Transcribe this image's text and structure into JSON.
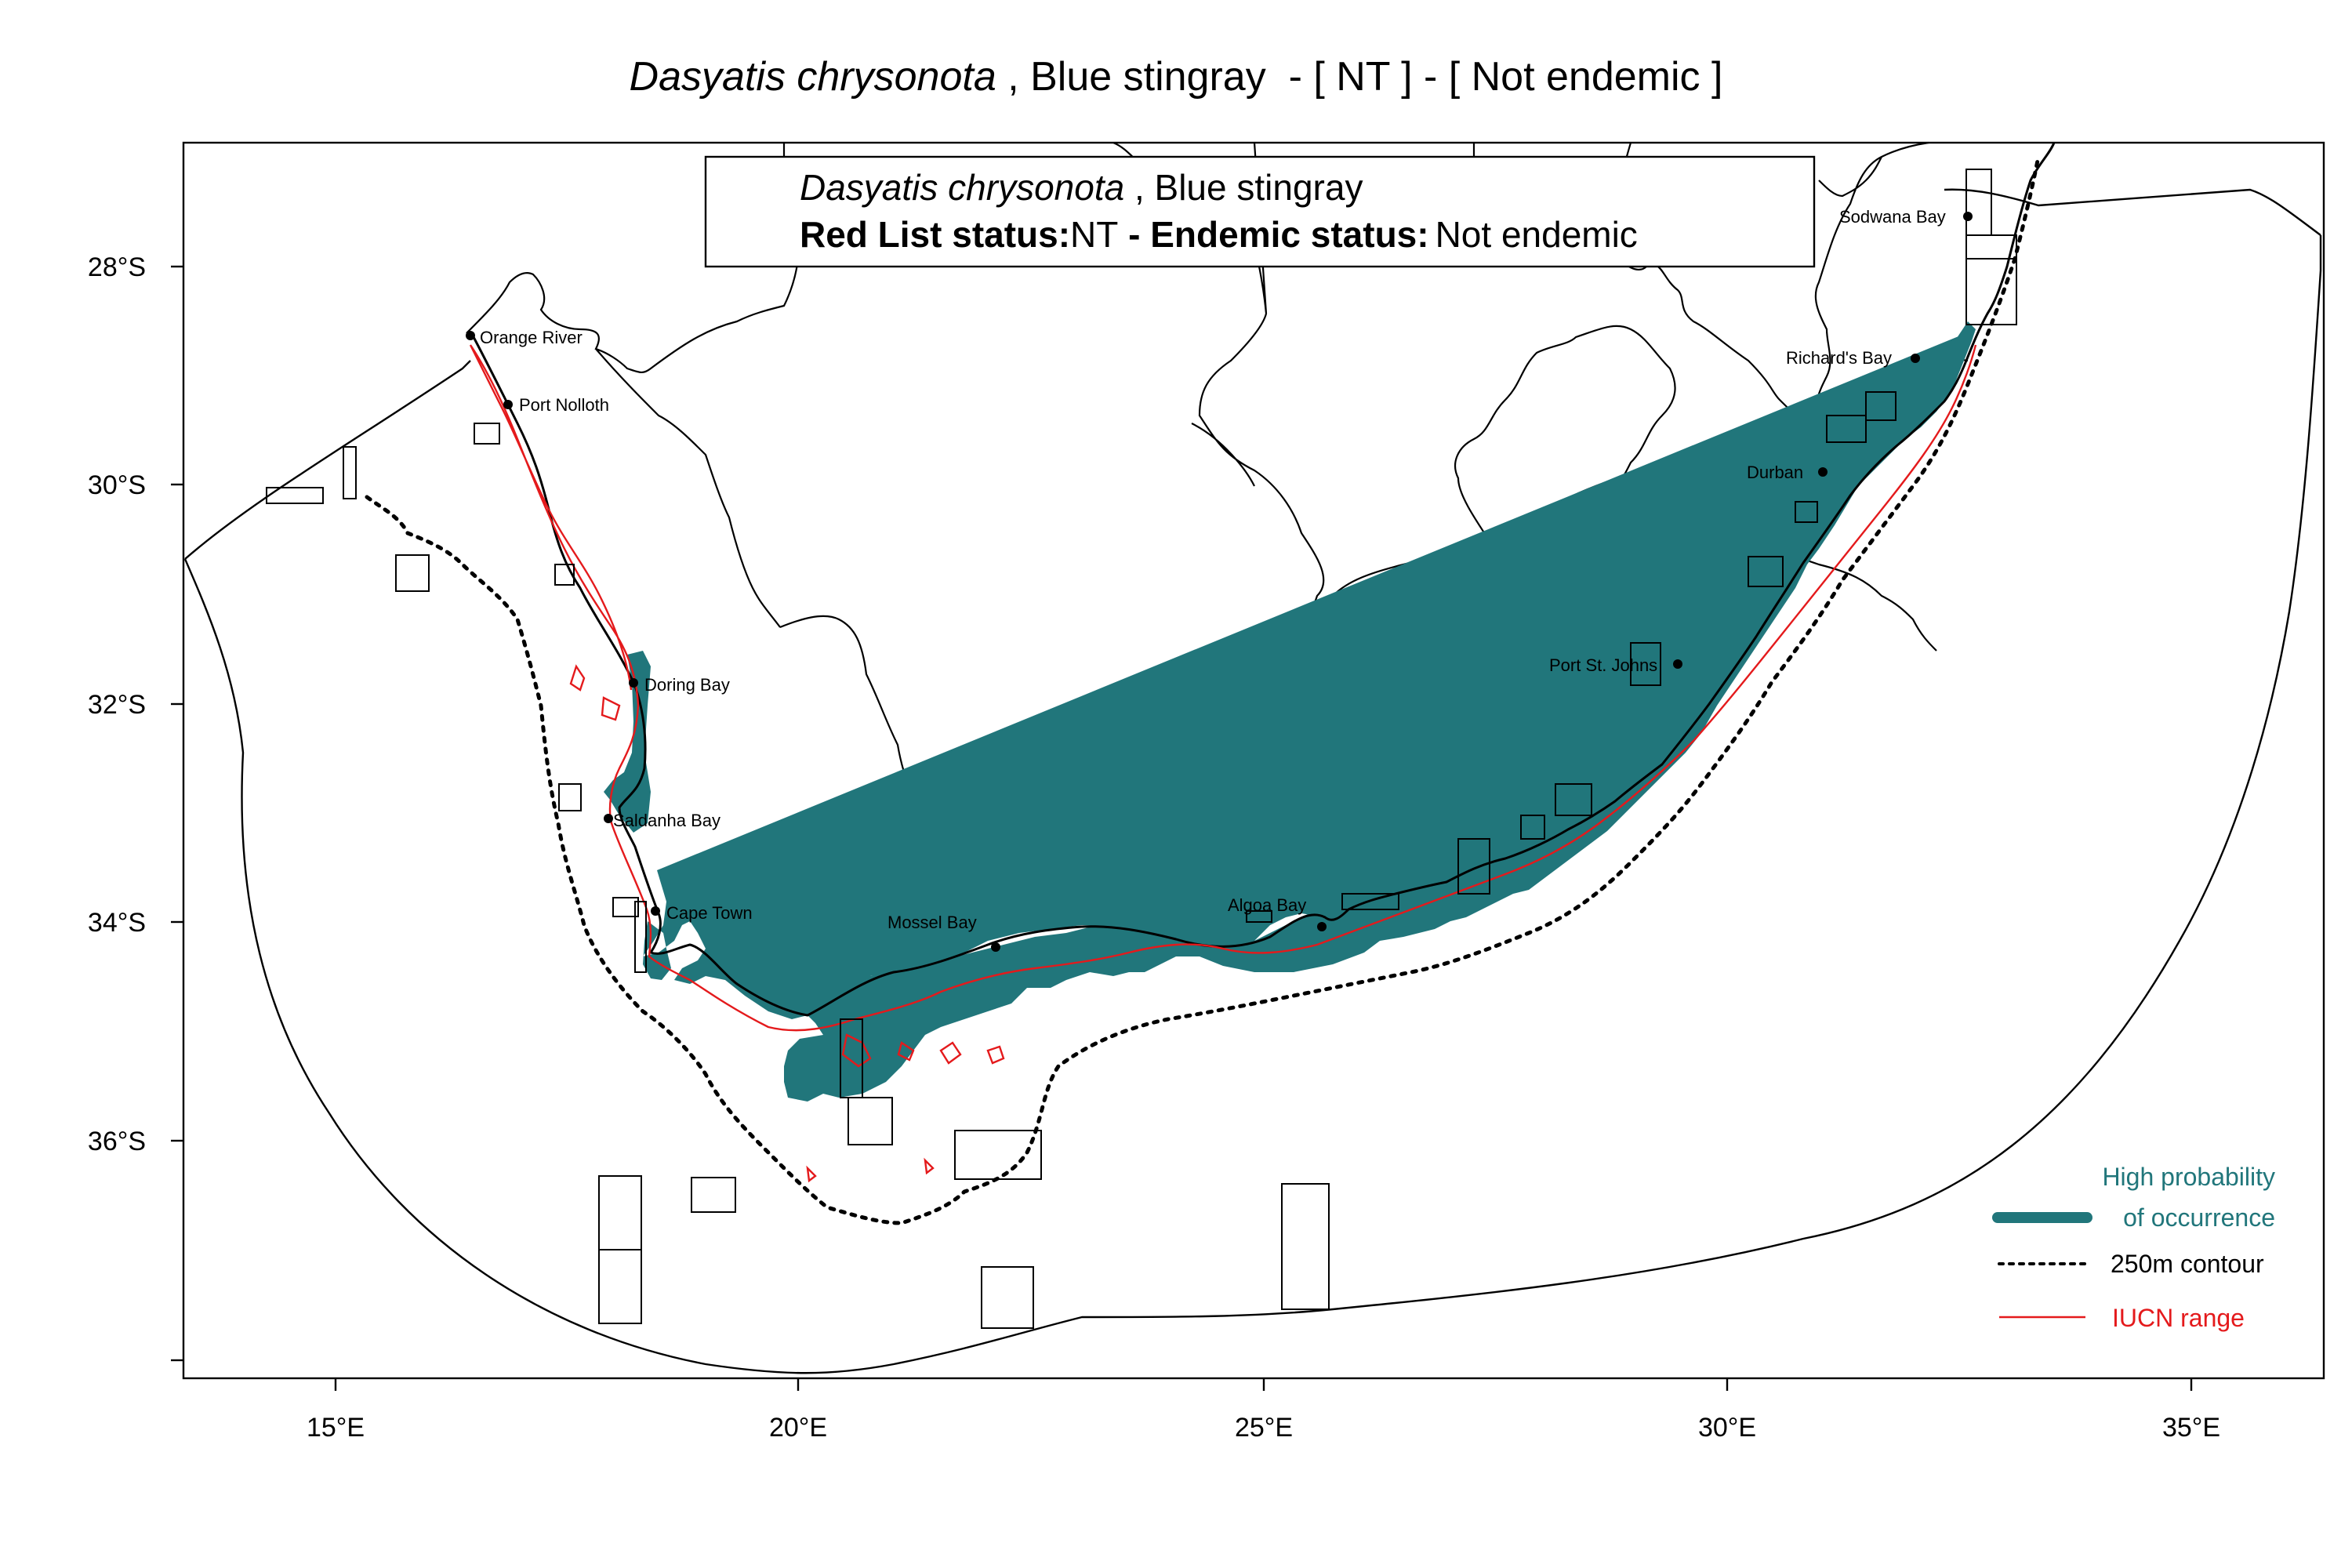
{
  "title": {
    "species_italic": "Dasyatis chrysonota",
    "rest": " , Blue stingray  - [ NT ] - [ Not endemic ]"
  },
  "info_box": {
    "species_italic": "Dasyatis chrysonota",
    "common_name": " , Blue stingray",
    "redlist_label": "Red List status:",
    "redlist_value": "NT",
    "endemic_label": " - Endemic status:",
    "endemic_value": "Not endemic"
  },
  "axes": {
    "x_ticks": [
      "15°E",
      "20°E",
      "25°E",
      "30°E",
      "35°E"
    ],
    "y_ticks": [
      "28°S",
      "30°S",
      "32°S",
      "34°S",
      "36°S"
    ]
  },
  "places": [
    {
      "name": "Orange River"
    },
    {
      "name": "Port Nolloth"
    },
    {
      "name": "Doring Bay"
    },
    {
      "name": "Saldanha Bay"
    },
    {
      "name": "Cape Town"
    },
    {
      "name": "Mossel Bay"
    },
    {
      "name": "Algoa Bay"
    },
    {
      "name": "Port St. Johns"
    },
    {
      "name": "Durban"
    },
    {
      "name": "Richard's Bay"
    },
    {
      "name": "Sodwana Bay"
    }
  ],
  "legend": {
    "occurrence_line1": "High probability",
    "occurrence_line2": "of occurrence",
    "contour": "250m contour",
    "iucn": "IUCN range"
  },
  "colors": {
    "occurrence": "#21767b",
    "iucn_range": "#e41a1c",
    "lines": "#000000"
  }
}
